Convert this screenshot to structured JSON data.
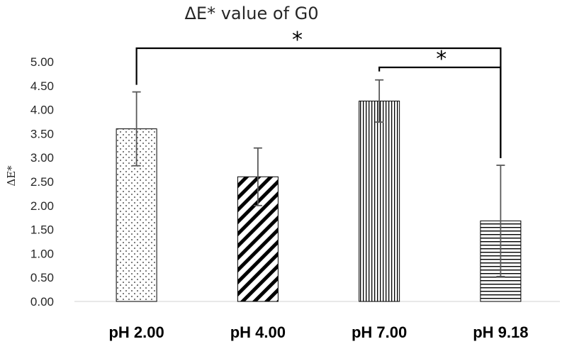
{
  "chart_data": {
    "type": "bar",
    "title": "ΔE* value of G0",
    "ylabel": "ΔE*",
    "xlabel": "",
    "categories": [
      "pH 2.00",
      "pH 4.00",
      "pH 7.00",
      "pH 9.18"
    ],
    "values": [
      3.6,
      2.6,
      4.18,
      1.68
    ],
    "error_bars": [
      0.77,
      0.6,
      0.44,
      1.16
    ],
    "patterns": [
      "dots",
      "diagonal-stripes",
      "vertical-stripes",
      "horizontal-stripes"
    ],
    "ylim": [
      0,
      5
    ],
    "yticks": [
      "0.00",
      "0.50",
      "1.00",
      "1.50",
      "2.00",
      "2.50",
      "3.00",
      "3.50",
      "4.00",
      "4.50",
      "5.00"
    ],
    "grid": false,
    "legend": "none",
    "significance": [
      {
        "from": "pH 2.00",
        "to": "pH 9.18",
        "label": "*"
      },
      {
        "from": "pH 7.00",
        "to": "pH 9.18",
        "label": "*"
      }
    ],
    "colors": {
      "bar_edge": "#000000",
      "error_bar": "#595959",
      "axis": "#d9d9d9",
      "text": "#262626"
    }
  }
}
